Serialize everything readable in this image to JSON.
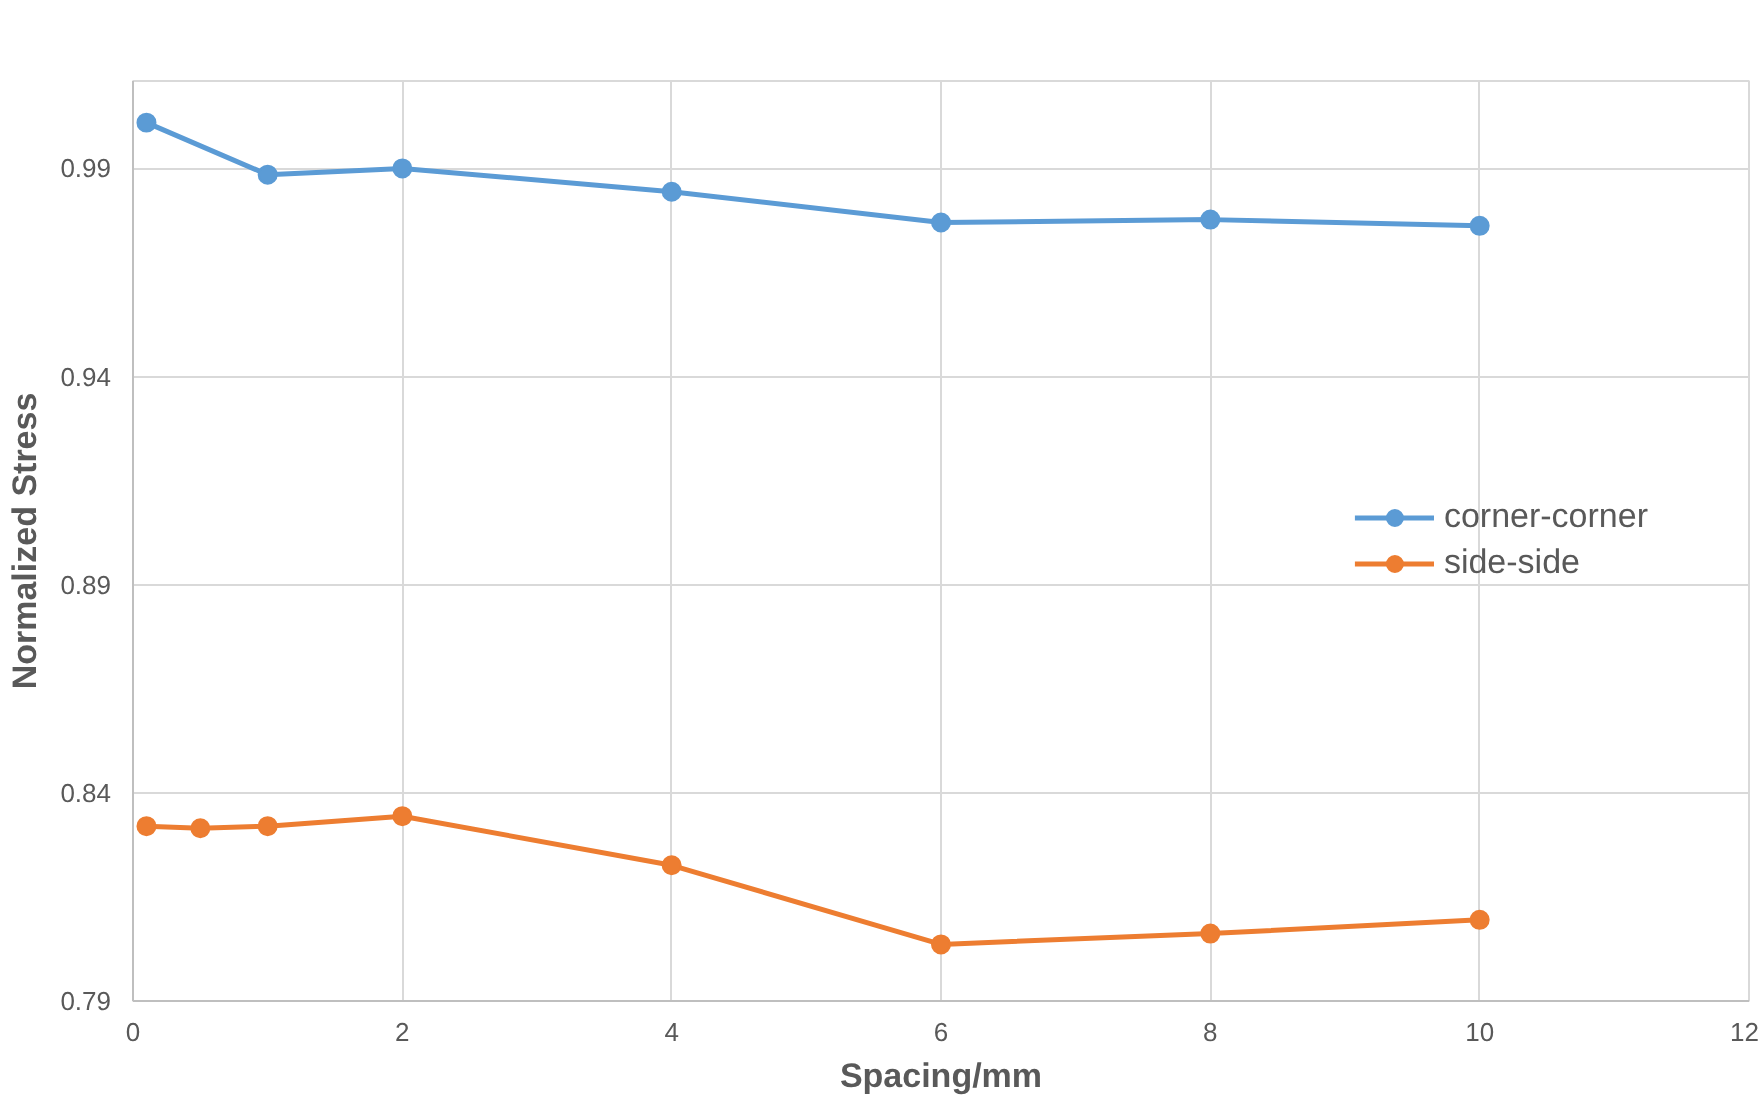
{
  "chart_data": {
    "type": "line",
    "xlabel": "Spacing/mm",
    "ylabel": "Normalized Stress",
    "xlim": [
      0,
      12
    ],
    "xticks": [
      0,
      2,
      4,
      6,
      8,
      10,
      12
    ],
    "ylim": [
      0.79,
      1.011
    ],
    "yticks": [
      0.79,
      0.84,
      0.89,
      0.94,
      0.99
    ],
    "grid": true,
    "legend": "right",
    "marker": "circle",
    "line_style": "solid",
    "series": [
      {
        "name": "corner-corner",
        "color": "#5b9bd5",
        "x": [
          0.1,
          1,
          2,
          4,
          6,
          8,
          10
        ],
        "values": [
          1.001,
          0.9885,
          0.99,
          0.9844,
          0.977,
          0.9777,
          0.9762
        ]
      },
      {
        "name": "side-side",
        "color": "#ed7d31",
        "x": [
          0.1,
          0.5,
          1,
          2,
          4,
          6,
          8,
          10
        ],
        "values": [
          0.832,
          0.8315,
          0.832,
          0.8344,
          0.8226,
          0.8036,
          0.8062,
          0.8095
        ]
      }
    ]
  }
}
